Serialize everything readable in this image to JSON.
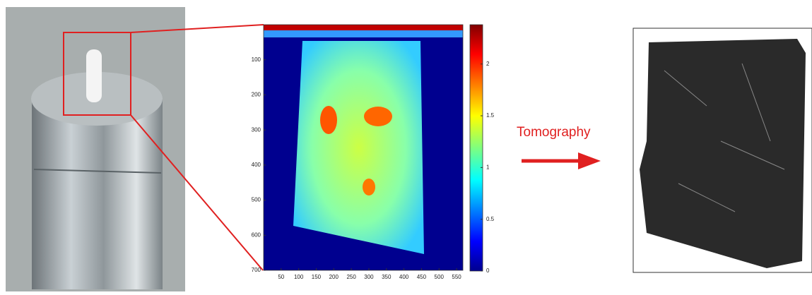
{
  "chart_data": {
    "type": "heatmap",
    "xlim": [
      0,
      568
    ],
    "ylim": [
      0,
      700
    ],
    "xticks": [
      50,
      100,
      150,
      200,
      250,
      300,
      350,
      400,
      450,
      500,
      550
    ],
    "yticks": [
      100,
      200,
      300,
      400,
      500,
      600,
      700
    ],
    "colorbar": {
      "lim": [
        0,
        2.38
      ],
      "ticks": [
        0,
        0.5,
        1,
        1.5,
        2
      ]
    }
  },
  "annotation": "Tomography"
}
